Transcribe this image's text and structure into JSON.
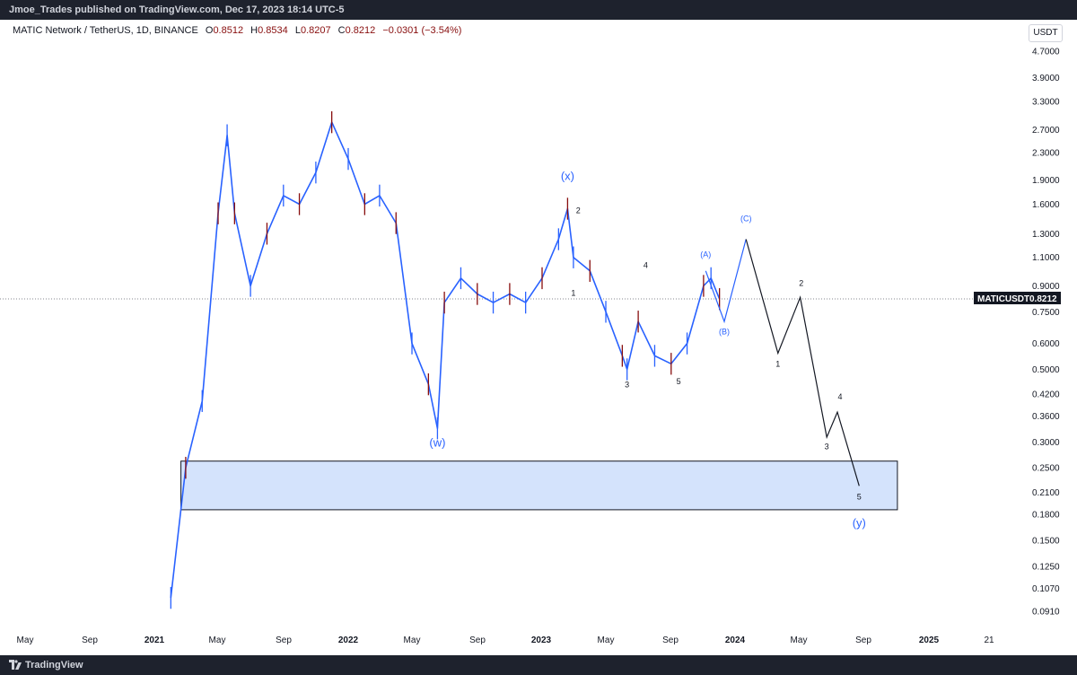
{
  "header": {
    "published": "Jmoe_Trades published on TradingView.com, Dec 17, 2023 18:14 UTC-5"
  },
  "symbol": {
    "name": "MATIC Network / TetherUS, 1D, BINANCE",
    "open_label": "O",
    "open": "0.8512",
    "high_label": "H",
    "high": "0.8534",
    "low_label": "L",
    "low": "0.8207",
    "close_label": "C",
    "close": "0.8212",
    "change": "−0.0301 (−3.54%)"
  },
  "currency_button": "USDT",
  "price_tag": {
    "symbol": "MATICUSDT",
    "value": "0.8212"
  },
  "footer": {
    "brand": "TradingView"
  },
  "colors": {
    "up": "#2962ff",
    "down": "#880e0e",
    "wave_blue": "#2962ff",
    "zone_fill": "#d4e3fc",
    "tag_bg": "#131722"
  },
  "chart_data": {
    "type": "line",
    "scale": "log",
    "ylim": [
      0.08,
      5.3
    ],
    "y_ticks": [
      "4.7000",
      "3.9000",
      "3.3000",
      "2.7000",
      "2.3000",
      "1.9000",
      "1.6000",
      "1.3000",
      "1.1000",
      "0.9000",
      "0.7500",
      "0.6000",
      "0.5000",
      "0.4200",
      "0.3600",
      "0.3000",
      "0.2500",
      "0.2100",
      "0.1800",
      "0.1500",
      "0.1250",
      "0.1070",
      "0.0910"
    ],
    "x_ticks": [
      "May",
      "Sep",
      "2021",
      "May",
      "Sep",
      "2022",
      "May",
      "Sep",
      "2023",
      "May",
      "Sep",
      "2024",
      "May",
      "Sep",
      "2025",
      "21"
    ],
    "x_ticks_bold": [
      2,
      5,
      8,
      11,
      14
    ],
    "price_path": {
      "x": [
        "2021-02",
        "2021-03",
        "2021-04",
        "2021-05",
        "2021-05-18",
        "2021-06",
        "2021-07",
        "2021-08",
        "2021-09",
        "2021-10",
        "2021-11",
        "2021-12",
        "2022-01",
        "2022-02",
        "2022-03",
        "2022-04",
        "2022-05",
        "2022-06",
        "2022-06-18",
        "2022-07",
        "2022-08",
        "2022-09",
        "2022-10",
        "2022-11",
        "2022-12",
        "2023-01",
        "2023-02",
        "2023-02-18",
        "2023-03",
        "2023-04",
        "2023-05",
        "2023-06",
        "2023-06-10",
        "2023-07",
        "2023-08",
        "2023-09",
        "2023-10",
        "2023-11",
        "2023-11-15",
        "2023-12"
      ],
      "y": [
        0.1,
        0.25,
        0.4,
        1.5,
        2.6,
        1.5,
        0.9,
        1.3,
        1.7,
        1.6,
        2.0,
        2.85,
        2.2,
        1.6,
        1.7,
        1.4,
        0.6,
        0.45,
        0.33,
        0.8,
        0.95,
        0.85,
        0.8,
        0.85,
        0.8,
        0.95,
        1.25,
        1.55,
        1.1,
        1.0,
        0.75,
        0.55,
        0.5,
        0.7,
        0.55,
        0.52,
        0.6,
        0.9,
        0.95,
        0.82
      ]
    },
    "projection_path": {
      "x": [
        "2023-11-05",
        "2023-12-10",
        "2024-01-20",
        "2024-03-20",
        "2024-05-01",
        "2024-06-20",
        "2024-07-10",
        "2024-08-20"
      ],
      "y": [
        1.0,
        0.7,
        1.25,
        0.56,
        0.83,
        0.31,
        0.37,
        0.22
      ]
    },
    "zone": {
      "x": [
        "2021-02-20",
        "2024-10-31"
      ],
      "y": [
        0.186,
        0.262
      ]
    },
    "current_price": 0.8212,
    "wave_labels": [
      {
        "text": "(w)",
        "x": "2022-06-18",
        "y": 0.29,
        "style": "blue-big"
      },
      {
        "text": "(x)",
        "x": "2023-02-18",
        "y": 1.9,
        "style": "blue-big"
      },
      {
        "text": "(y)",
        "x": "2024-08-20",
        "y": 0.165,
        "style": "blue-big"
      },
      {
        "text": "(A)",
        "x": "2023-11-05",
        "y": 1.1,
        "style": "blue"
      },
      {
        "text": "(B)",
        "x": "2023-12-10",
        "y": 0.64,
        "style": "blue"
      },
      {
        "text": "(C)",
        "x": "2024-01-20",
        "y": 1.42,
        "style": "blue"
      },
      {
        "text": "1",
        "x": "2023-03-01",
        "y": 0.84,
        "style": "black"
      },
      {
        "text": "2",
        "x": "2023-03-10",
        "y": 1.5,
        "style": "black"
      },
      {
        "text": "3",
        "x": "2023-06-10",
        "y": 0.44,
        "style": "black"
      },
      {
        "text": "4",
        "x": "2023-07-15",
        "y": 1.02,
        "style": "black"
      },
      {
        "text": "5",
        "x": "2023-09-15",
        "y": 0.45,
        "style": "black"
      },
      {
        "text": "1",
        "x": "2024-03-20",
        "y": 0.51,
        "style": "black"
      },
      {
        "text": "2",
        "x": "2024-05-03",
        "y": 0.9,
        "style": "black"
      },
      {
        "text": "3",
        "x": "2024-06-20",
        "y": 0.285,
        "style": "black"
      },
      {
        "text": "4",
        "x": "2024-07-15",
        "y": 0.405,
        "style": "black"
      },
      {
        "text": "5",
        "x": "2024-08-20",
        "y": 0.2,
        "style": "black"
      }
    ]
  }
}
